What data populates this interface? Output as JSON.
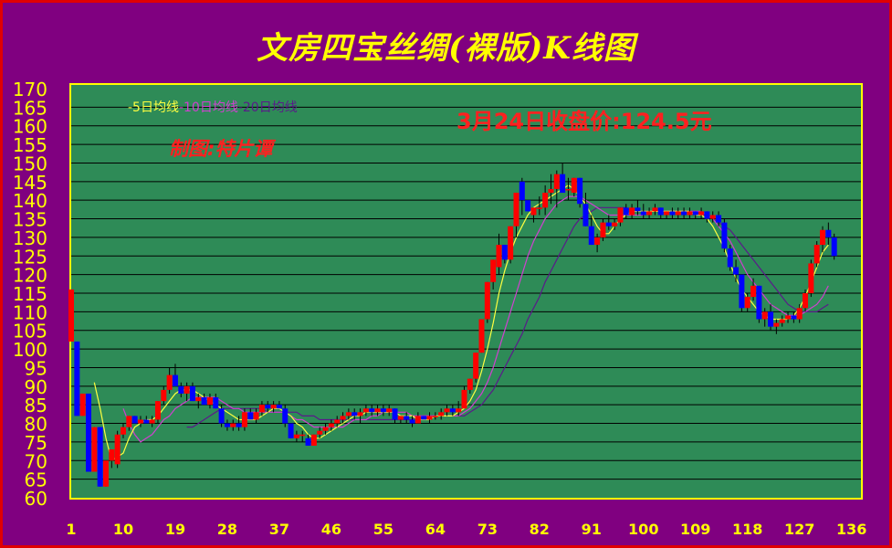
{
  "title": "文房四宝丝绸(裸版)K线图",
  "legend": [
    {
      "label": "-5日均线",
      "color": "#ffff40"
    },
    {
      "label": "-10日均线",
      "color": "#d040d0"
    },
    {
      "label": "-20日均线",
      "color": "#5a1a8a"
    }
  ],
  "close_price_text": "3月24日收盘价:124.5元",
  "author_text": "制图:特片谭",
  "colors": {
    "background": "#800080",
    "plot": "#2e8b57",
    "axis_text": "#ffff00",
    "up": "#ff0000",
    "down": "#0000ff"
  },
  "chart_data": {
    "type": "candlestick",
    "title": "文房四宝丝绸(裸版)K线图",
    "ylim": [
      60,
      170
    ],
    "y_ticks": [
      60,
      65,
      70,
      75,
      80,
      85,
      90,
      95,
      100,
      105,
      110,
      115,
      120,
      125,
      130,
      135,
      140,
      145,
      150,
      155,
      160,
      165,
      170
    ],
    "x_ticks": [
      1,
      10,
      19,
      28,
      37,
      46,
      55,
      64,
      73,
      82,
      91,
      100,
      109,
      118,
      127,
      136
    ],
    "xlim": [
      1,
      137
    ],
    "grid": true,
    "candles_x_start": 1,
    "candles": [
      [
        102,
        116,
        102,
        116
      ],
      [
        102,
        102,
        82,
        82
      ],
      [
        82,
        88,
        82,
        88
      ],
      [
        88,
        88,
        67,
        67
      ],
      [
        67,
        79,
        67,
        79
      ],
      [
        79,
        79,
        63,
        63
      ],
      [
        63,
        70,
        63,
        70
      ],
      [
        70,
        73,
        68,
        73
      ],
      [
        69,
        78,
        68,
        77
      ],
      [
        77,
        80,
        76,
        79
      ],
      [
        79,
        82,
        78,
        82
      ],
      [
        82,
        82,
        80,
        80
      ],
      [
        80,
        82,
        79,
        81
      ],
      [
        81,
        82,
        80,
        80
      ],
      [
        80,
        82,
        79,
        81
      ],
      [
        81,
        86,
        80,
        86
      ],
      [
        86,
        90,
        85,
        89
      ],
      [
        89,
        95,
        88,
        93
      ],
      [
        93,
        96,
        90,
        90
      ],
      [
        90,
        91,
        87,
        88
      ],
      [
        88,
        91,
        86,
        90
      ],
      [
        90,
        91,
        86,
        86
      ],
      [
        86,
        88,
        84,
        87
      ],
      [
        87,
        88,
        85,
        85
      ],
      [
        85,
        88,
        84,
        87
      ],
      [
        87,
        88,
        84,
        84
      ],
      [
        84,
        85,
        79,
        80
      ],
      [
        80,
        81,
        78,
        79
      ],
      [
        79,
        81,
        78,
        80
      ],
      [
        80,
        82,
        78,
        79
      ],
      [
        79,
        84,
        78,
        83
      ],
      [
        83,
        84,
        81,
        81
      ],
      [
        81,
        84,
        80,
        83
      ],
      [
        83,
        86,
        82,
        85
      ],
      [
        85,
        86,
        83,
        84
      ],
      [
        84,
        86,
        83,
        85
      ],
      [
        85,
        86,
        84,
        84
      ],
      [
        84,
        85,
        79,
        80
      ],
      [
        80,
        80,
        76,
        76
      ],
      [
        76,
        78,
        75,
        77
      ],
      [
        77,
        78,
        75,
        77
      ],
      [
        76,
        77,
        74,
        74
      ],
      [
        74,
        77,
        74,
        77
      ],
      [
        77,
        79,
        76,
        78
      ],
      [
        78,
        80,
        77,
        79
      ],
      [
        79,
        81,
        78,
        80
      ],
      [
        80,
        82,
        79,
        81
      ],
      [
        81,
        83,
        80,
        82
      ],
      [
        82,
        84,
        81,
        83
      ],
      [
        83,
        84,
        81,
        82
      ],
      [
        82,
        84,
        80,
        83
      ],
      [
        83,
        85,
        82,
        84
      ],
      [
        84,
        85,
        82,
        83
      ],
      [
        83,
        85,
        82,
        84
      ],
      [
        84,
        85,
        82,
        83
      ],
      [
        83,
        85,
        82,
        84
      ],
      [
        84,
        84,
        80,
        81
      ],
      [
        81,
        82,
        80,
        82
      ],
      [
        82,
        83,
        80,
        81
      ],
      [
        81,
        82,
        79,
        80
      ],
      [
        80,
        83,
        80,
        82
      ],
      [
        82,
        82,
        81,
        81
      ],
      [
        81,
        83,
        80,
        82
      ],
      [
        82,
        83,
        81,
        82
      ],
      [
        82,
        84,
        81,
        83
      ],
      [
        83,
        85,
        82,
        84
      ],
      [
        84,
        85,
        82,
        83
      ],
      [
        83,
        86,
        82,
        84
      ],
      [
        84,
        90,
        84,
        89
      ],
      [
        89,
        92,
        88,
        92
      ],
      [
        92,
        99,
        91,
        99
      ],
      [
        99,
        108,
        99,
        108
      ],
      [
        108,
        118,
        107,
        118
      ],
      [
        118,
        124,
        116,
        124
      ],
      [
        122,
        131,
        120,
        128
      ],
      [
        128,
        128,
        123,
        124
      ],
      [
        124,
        133,
        123,
        133
      ],
      [
        133,
        142,
        130,
        142
      ],
      [
        145,
        146,
        136,
        140
      ],
      [
        140,
        140,
        137,
        137
      ],
      [
        136,
        138,
        134,
        138
      ],
      [
        138,
        141,
        136,
        138
      ],
      [
        138,
        144,
        136,
        142
      ],
      [
        142,
        147,
        139,
        143
      ],
      [
        143,
        148,
        138,
        147
      ],
      [
        147,
        150,
        142,
        142
      ],
      [
        143,
        146,
        140,
        143
      ],
      [
        142,
        146,
        141,
        146
      ],
      [
        146,
        146,
        138,
        139
      ],
      [
        139,
        142,
        133,
        133
      ],
      [
        133,
        136,
        128,
        128
      ],
      [
        128,
        131,
        126,
        130
      ],
      [
        130,
        135,
        129,
        134
      ],
      [
        134,
        136,
        132,
        133
      ],
      [
        133,
        135,
        132,
        134
      ],
      [
        134,
        138,
        133,
        138
      ],
      [
        138,
        139,
        135,
        136
      ],
      [
        136,
        139,
        135,
        138
      ],
      [
        138,
        140,
        136,
        137
      ],
      [
        137,
        139,
        135,
        136
      ],
      [
        136,
        138,
        135,
        137
      ],
      [
        137,
        139,
        136,
        138
      ],
      [
        138,
        138,
        135,
        136
      ],
      [
        136,
        137,
        135,
        137
      ],
      [
        137,
        138,
        135,
        136
      ],
      [
        136,
        138,
        135,
        137
      ],
      [
        137,
        138,
        135,
        136
      ],
      [
        136,
        138,
        135,
        137
      ],
      [
        137,
        137,
        135,
        136
      ],
      [
        136,
        138,
        135,
        137
      ],
      [
        137,
        137,
        134,
        135
      ],
      [
        135,
        137,
        134,
        136
      ],
      [
        136,
        137,
        133,
        134
      ],
      [
        134,
        135,
        126,
        127
      ],
      [
        127,
        128,
        121,
        122
      ],
      [
        122,
        124,
        118,
        120
      ],
      [
        120,
        120,
        110,
        111
      ],
      [
        111,
        115,
        110,
        114
      ],
      [
        114,
        119,
        113,
        117
      ],
      [
        117,
        117,
        107,
        108
      ],
      [
        108,
        111,
        106,
        110
      ],
      [
        110,
        112,
        105,
        106
      ],
      [
        106,
        108,
        104,
        107
      ],
      [
        107,
        109,
        106,
        108
      ],
      [
        108,
        110,
        107,
        109
      ],
      [
        109,
        110,
        107,
        108
      ],
      [
        108,
        112,
        107,
        111
      ],
      [
        111,
        116,
        110,
        115
      ],
      [
        115,
        124,
        114,
        123
      ],
      [
        123,
        129,
        122,
        128
      ],
      [
        128,
        133,
        126,
        132
      ],
      [
        132,
        134,
        128,
        130
      ],
      [
        130,
        131,
        124,
        125
      ]
    ],
    "ma5": [
      null,
      null,
      null,
      null,
      91,
      84,
      76,
      70,
      71,
      72,
      76,
      79,
      80,
      81,
      81,
      82,
      84,
      86,
      88,
      89,
      89,
      89,
      88,
      87,
      86,
      85,
      84,
      83,
      82,
      81,
      81,
      81,
      81,
      82,
      83,
      84,
      84,
      83,
      82,
      80,
      79,
      77,
      76,
      76,
      77,
      78,
      79,
      80,
      81,
      82,
      82,
      83,
      83,
      83,
      83,
      83,
      83,
      82,
      82,
      82,
      81,
      81,
      81,
      82,
      82,
      82,
      82,
      83,
      84,
      86,
      89,
      94,
      100,
      107,
      115,
      121,
      126,
      130,
      133,
      136,
      138,
      139,
      140,
      141,
      142,
      143,
      144,
      143,
      141,
      139,
      136,
      133,
      131,
      131,
      133,
      135,
      136,
      137,
      137,
      137,
      137,
      137,
      137,
      137,
      137,
      137,
      137,
      137,
      136,
      136,
      135,
      133,
      130,
      127,
      123,
      119,
      116,
      114,
      112,
      110,
      109,
      108,
      108,
      108,
      108,
      109,
      111,
      114,
      118,
      122,
      126,
      128
    ],
    "ma10": [
      null,
      null,
      null,
      null,
      null,
      null,
      null,
      null,
      null,
      84,
      80,
      77,
      75,
      76,
      77,
      79,
      81,
      82,
      84,
      85,
      86,
      87,
      87,
      87,
      87,
      87,
      86,
      85,
      84,
      84,
      83,
      83,
      83,
      83,
      83,
      83,
      83,
      83,
      82,
      81,
      81,
      80,
      79,
      79,
      79,
      79,
      79,
      79,
      80,
      81,
      81,
      81,
      82,
      82,
      83,
      83,
      83,
      83,
      83,
      82,
      82,
      82,
      82,
      82,
      82,
      82,
      82,
      82,
      83,
      84,
      86,
      88,
      91,
      95,
      100,
      105,
      110,
      115,
      120,
      125,
      129,
      132,
      135,
      137,
      139,
      140,
      141,
      141,
      141,
      140,
      139,
      138,
      137,
      136,
      136,
      136,
      136,
      136,
      136,
      136,
      137,
      137,
      137,
      137,
      137,
      137,
      137,
      137,
      137,
      137,
      136,
      135,
      133,
      131,
      129,
      126,
      123,
      120,
      118,
      116,
      114,
      112,
      111,
      110,
      109,
      109,
      109,
      110,
      111,
      112,
      114,
      117
    ],
    "ma20": [
      null,
      null,
      null,
      null,
      null,
      null,
      null,
      null,
      null,
      null,
      null,
      null,
      null,
      null,
      null,
      null,
      null,
      null,
      null,
      null,
      79,
      79,
      80,
      81,
      82,
      83,
      84,
      84,
      84,
      84,
      84,
      84,
      84,
      84,
      83,
      83,
      83,
      83,
      83,
      83,
      82,
      82,
      82,
      81,
      81,
      81,
      81,
      81,
      81,
      81,
      81,
      81,
      81,
      81,
      81,
      81,
      81,
      81,
      81,
      81,
      82,
      82,
      82,
      82,
      82,
      82,
      82,
      82,
      82,
      83,
      84,
      85,
      87,
      89,
      92,
      95,
      98,
      101,
      104,
      108,
      111,
      114,
      118,
      121,
      124,
      127,
      130,
      133,
      135,
      136,
      137,
      138,
      138,
      138,
      138,
      138,
      138,
      137,
      137,
      137,
      137,
      137,
      137,
      137,
      137,
      137,
      137,
      137,
      137,
      136,
      136,
      135,
      134,
      133,
      132,
      130,
      128,
      126,
      124,
      122,
      120,
      118,
      116,
      114,
      112,
      111,
      110,
      110,
      110,
      110,
      111,
      112
    ]
  }
}
